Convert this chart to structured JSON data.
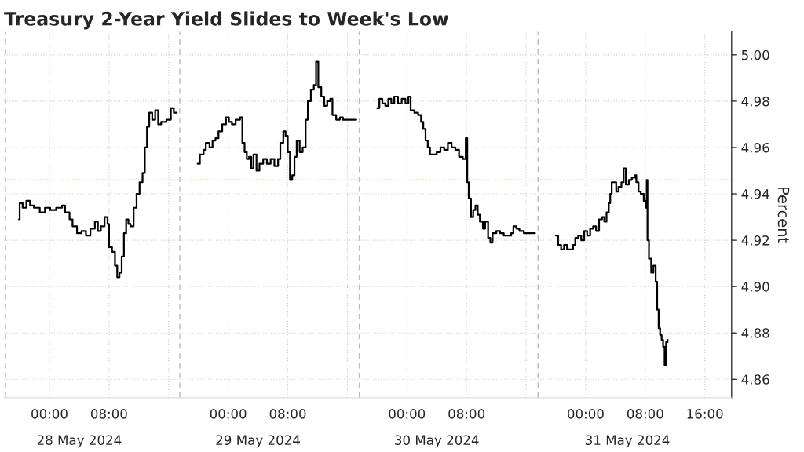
{
  "chart_data": {
    "type": "step",
    "title": "Treasury 2-Year Yield Slides to Week's Low",
    "ylabel": "Percent",
    "xlim": [
      "2024-05-27T17:54",
      "2024-05-31T19:36"
    ],
    "ylim": [
      4.852,
      5.01
    ],
    "xticks": [
      {
        "value": "2024-05-28T00:00",
        "label": "00:00"
      },
      {
        "value": "2024-05-28T08:00",
        "label": "08:00"
      },
      {
        "value": "2024-05-28T16:00",
        "label": null
      },
      {
        "value": "2024-05-29T00:00",
        "label": "00:00"
      },
      {
        "value": "2024-05-29T08:00",
        "label": "08:00"
      },
      {
        "value": "2024-05-29T16:00",
        "label": null
      },
      {
        "value": "2024-05-30T00:00",
        "label": "00:00"
      },
      {
        "value": "2024-05-30T08:00",
        "label": "08:00"
      },
      {
        "value": "2024-05-30T16:00",
        "label": null
      },
      {
        "value": "2024-05-31T00:00",
        "label": "00:00"
      },
      {
        "value": "2024-05-31T08:00",
        "label": "08:00"
      },
      {
        "value": "2024-05-31T16:00",
        "label": "16:00"
      }
    ],
    "x2lim": [
      "2024-05-27T17:54",
      "2024-05-31T19:36"
    ],
    "x2ticks": [
      {
        "value": "2024-05-28T04:00",
        "label": "28 May 2024"
      },
      {
        "value": "2024-05-29T04:00",
        "label": "29 May 2024"
      },
      {
        "value": "2024-05-30T04:00",
        "label": "30 May 2024"
      },
      {
        "value": "2024-05-31T05:36",
        "label": "31 May 2024"
      }
    ],
    "yticks": [
      4.86,
      4.88,
      {
        "value": 4.9,
        "label": "4.90"
      },
      4.92,
      4.94,
      4.96,
      4.98,
      {
        "value": 5.0,
        "label": "5.00"
      }
    ],
    "grid": true,
    "line_style": "solid",
    "ref_lines": [
      {
        "axis": "y",
        "value": 4.946,
        "color": "#e8b84a",
        "line_style": "dotted"
      },
      {
        "axis": "x",
        "value": "2024-05-27T18:06",
        "color": "#bbbbbb",
        "line_style": "dashed"
      },
      {
        "axis": "x",
        "value": "2024-05-28T17:30",
        "color": "#bbbbbb",
        "line_style": "dashed"
      },
      {
        "axis": "x",
        "value": "2024-05-29T17:36",
        "color": "#bbbbbb",
        "line_style": "dashed"
      },
      {
        "axis": "x",
        "value": "2024-05-30T17:36",
        "color": "#bbbbbb",
        "line_style": "dashed"
      }
    ],
    "series": [
      {
        "color": "#000000",
        "x": [
          "2024-05-27T19:54",
          "2024-05-27T20:00",
          "2024-05-27T20:24",
          "2024-05-27T20:54",
          "2024-05-27T21:24",
          "2024-05-27T21:54",
          "2024-05-27T22:42",
          "2024-05-27T23:24",
          "2024-05-28T00:06",
          "2024-05-28T00:54",
          "2024-05-28T01:42",
          "2024-05-28T02:06",
          "2024-05-28T02:42",
          "2024-05-28T03:06",
          "2024-05-28T03:42",
          "2024-05-28T04:18",
          "2024-05-28T04:54",
          "2024-05-28T05:30",
          "2024-05-28T06:06",
          "2024-05-28T06:30",
          "2024-05-28T06:54",
          "2024-05-28T07:24",
          "2024-05-28T07:48",
          "2024-05-28T08:00",
          "2024-05-28T08:24",
          "2024-05-28T08:48",
          "2024-05-28T09:06",
          "2024-05-28T09:24",
          "2024-05-28T09:42",
          "2024-05-28T10:00",
          "2024-05-28T10:18",
          "2024-05-28T10:36",
          "2024-05-28T10:54",
          "2024-05-28T11:18",
          "2024-05-28T11:42",
          "2024-05-28T12:06",
          "2024-05-28T12:30",
          "2024-05-28T12:48",
          "2024-05-28T13:06",
          "2024-05-28T13:24",
          "2024-05-28T13:48",
          "2024-05-28T14:12",
          "2024-05-28T14:36",
          "2024-05-28T15:00",
          "2024-05-28T15:42",
          "2024-05-28T16:18",
          "2024-05-28T16:42",
          "2024-05-28T17:06",
          "2024-05-28T19:54",
          "2024-05-28T20:12",
          "2024-05-28T20:42",
          "2024-05-28T21:00",
          "2024-05-28T21:30",
          "2024-05-28T21:54",
          "2024-05-28T22:18",
          "2024-05-28T22:42",
          "2024-05-28T23:12",
          "2024-05-28T23:42",
          "2024-05-29T00:06",
          "2024-05-29T00:30",
          "2024-05-29T01:00",
          "2024-05-29T01:36",
          "2024-05-29T01:54",
          "2024-05-29T02:12",
          "2024-05-29T02:30",
          "2024-05-29T02:48",
          "2024-05-29T03:06",
          "2024-05-29T03:24",
          "2024-05-29T03:48",
          "2024-05-29T04:12",
          "2024-05-29T04:42",
          "2024-05-29T05:12",
          "2024-05-29T05:42",
          "2024-05-29T06:12",
          "2024-05-29T06:42",
          "2024-05-29T07:00",
          "2024-05-29T07:24",
          "2024-05-29T07:42",
          "2024-05-29T08:00",
          "2024-05-29T08:18",
          "2024-05-29T08:36",
          "2024-05-29T08:54",
          "2024-05-29T09:12",
          "2024-05-29T09:36",
          "2024-05-29T10:00",
          "2024-05-29T10:24",
          "2024-05-29T10:42",
          "2024-05-29T11:06",
          "2024-05-29T11:30",
          "2024-05-29T11:48",
          "2024-05-29T12:06",
          "2024-05-29T12:30",
          "2024-05-29T12:54",
          "2024-05-29T13:18",
          "2024-05-29T13:42",
          "2024-05-29T14:00",
          "2024-05-29T14:30",
          "2024-05-29T15:00",
          "2024-05-29T15:24",
          "2024-05-29T17:12",
          "2024-05-29T20:00",
          "2024-05-29T20:18",
          "2024-05-29T20:42",
          "2024-05-29T21:06",
          "2024-05-29T21:30",
          "2024-05-29T21:54",
          "2024-05-29T22:18",
          "2024-05-29T22:48",
          "2024-05-29T23:18",
          "2024-05-29T23:48",
          "2024-05-30T00:12",
          "2024-05-30T00:30",
          "2024-05-30T01:00",
          "2024-05-30T01:30",
          "2024-05-30T01:54",
          "2024-05-30T02:12",
          "2024-05-30T02:30",
          "2024-05-30T02:48",
          "2024-05-30T03:06",
          "2024-05-30T03:30",
          "2024-05-30T04:00",
          "2024-05-30T04:30",
          "2024-05-30T05:00",
          "2024-05-30T05:30",
          "2024-05-30T06:00",
          "2024-05-30T06:30",
          "2024-05-30T07:00",
          "2024-05-30T07:30",
          "2024-05-30T07:54",
          "2024-05-30T08:06",
          "2024-05-30T08:18",
          "2024-05-30T08:36",
          "2024-05-30T08:54",
          "2024-05-30T09:12",
          "2024-05-30T09:30",
          "2024-05-30T09:48",
          "2024-05-30T10:12",
          "2024-05-30T10:30",
          "2024-05-30T10:54",
          "2024-05-30T11:12",
          "2024-05-30T11:30",
          "2024-05-30T12:00",
          "2024-05-30T12:30",
          "2024-05-30T13:00",
          "2024-05-30T13:30",
          "2024-05-30T14:00",
          "2024-05-30T14:18",
          "2024-05-30T14:42",
          "2024-05-30T15:06",
          "2024-05-30T15:42",
          "2024-05-30T17:12",
          "2024-05-30T20:00",
          "2024-05-30T20:18",
          "2024-05-30T20:42",
          "2024-05-30T21:06",
          "2024-05-30T21:30",
          "2024-05-30T21:54",
          "2024-05-30T22:18",
          "2024-05-30T22:36",
          "2024-05-30T23:00",
          "2024-05-30T23:24",
          "2024-05-30T23:48",
          "2024-05-31T00:12",
          "2024-05-31T00:36",
          "2024-05-31T01:00",
          "2024-05-31T01:24",
          "2024-05-31T01:48",
          "2024-05-31T02:12",
          "2024-05-31T02:30",
          "2024-05-31T02:48",
          "2024-05-31T03:06",
          "2024-05-31T03:18",
          "2024-05-31T03:30",
          "2024-05-31T03:48",
          "2024-05-31T04:06",
          "2024-05-31T04:24",
          "2024-05-31T04:48",
          "2024-05-31T05:06",
          "2024-05-31T05:24",
          "2024-05-31T05:48",
          "2024-05-31T06:12",
          "2024-05-31T06:36",
          "2024-05-31T06:48",
          "2024-05-31T07:06",
          "2024-05-31T07:24",
          "2024-05-31T07:48",
          "2024-05-31T08:06",
          "2024-05-31T08:12",
          "2024-05-31T08:18",
          "2024-05-31T08:30",
          "2024-05-31T08:48",
          "2024-05-31T09:06",
          "2024-05-31T09:24",
          "2024-05-31T09:36",
          "2024-05-31T09:48",
          "2024-05-31T10:00",
          "2024-05-31T10:12",
          "2024-05-31T10:24",
          "2024-05-31T10:36",
          "2024-05-31T10:48",
          "2024-05-31T11:00"
        ],
        "values": [
          4.929,
          4.936,
          4.934,
          4.937,
          4.935,
          4.934,
          4.932,
          4.934,
          4.933,
          4.934,
          4.935,
          4.932,
          4.929,
          4.926,
          4.923,
          4.924,
          4.922,
          4.925,
          4.928,
          4.924,
          4.926,
          4.93,
          4.927,
          4.917,
          4.915,
          4.909,
          4.904,
          4.906,
          4.913,
          4.923,
          4.929,
          4.927,
          4.926,
          4.934,
          4.94,
          4.945,
          4.949,
          4.96,
          4.969,
          4.975,
          4.972,
          4.976,
          4.97,
          4.971,
          4.972,
          4.977,
          4.975,
          null,
          4.953,
          4.957,
          4.959,
          4.962,
          4.96,
          4.963,
          4.964,
          4.967,
          4.97,
          4.973,
          4.971,
          4.97,
          4.972,
          4.973,
          4.962,
          4.958,
          4.955,
          4.956,
          4.951,
          4.957,
          4.95,
          4.953,
          4.955,
          4.953,
          4.955,
          4.952,
          4.955,
          4.962,
          4.967,
          4.965,
          4.958,
          4.946,
          4.948,
          4.956,
          4.963,
          4.958,
          4.96,
          4.972,
          4.98,
          4.985,
          4.987,
          4.997,
          4.986,
          4.982,
          4.978,
          4.98,
          4.981,
          4.974,
          4.972,
          4.973,
          4.972,
          null,
          4.977,
          4.981,
          4.979,
          4.978,
          4.981,
          4.979,
          4.982,
          4.979,
          4.981,
          4.979,
          4.982,
          4.976,
          4.975,
          4.974,
          4.971,
          4.968,
          4.963,
          4.96,
          4.957,
          4.957,
          4.958,
          4.96,
          4.959,
          4.962,
          4.96,
          4.959,
          4.956,
          4.955,
          4.964,
          4.945,
          4.938,
          4.93,
          4.933,
          4.935,
          4.931,
          4.928,
          4.925,
          4.928,
          4.921,
          4.919,
          4.923,
          4.924,
          4.923,
          4.922,
          4.922,
          4.923,
          4.926,
          4.925,
          4.924,
          4.923,
          null,
          4.922,
          4.918,
          4.916,
          4.918,
          4.916,
          4.916,
          4.918,
          4.921,
          4.922,
          4.92,
          4.924,
          4.922,
          4.925,
          4.926,
          4.924,
          4.929,
          4.93,
          4.928,
          4.932,
          4.936,
          4.94,
          4.945,
          4.945,
          4.941,
          4.943,
          4.945,
          4.951,
          4.944,
          4.946,
          4.947,
          4.948,
          4.945,
          4.941,
          4.94,
          4.937,
          4.934,
          4.946,
          4.92,
          4.912,
          4.906,
          4.909,
          4.902,
          4.89,
          4.882,
          4.879,
          4.877,
          4.874,
          4.866,
          4.876,
          4.877
        ]
      }
    ]
  }
}
